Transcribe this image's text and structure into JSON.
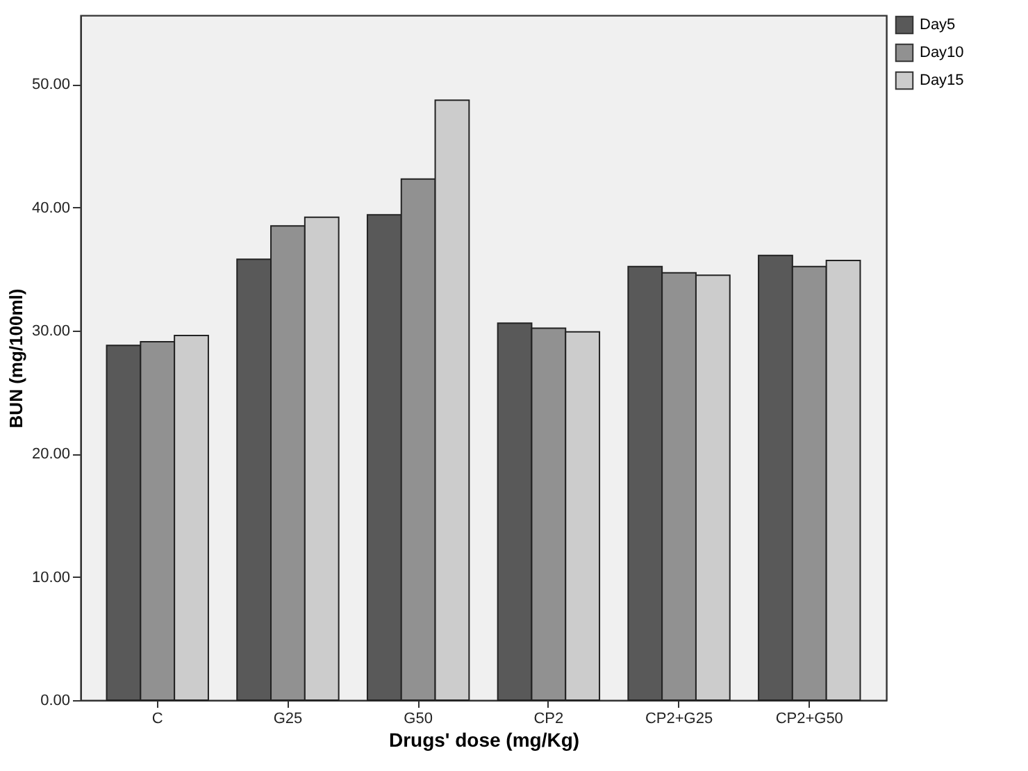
{
  "chart_data": {
    "type": "bar",
    "xlabel": "Drugs' dose (mg/Kg)",
    "ylabel": "BUN (mg/100ml)",
    "categories": [
      "C",
      "G25",
      "G50",
      "CP2",
      "CP2+G25",
      "CP2+G50"
    ],
    "series": [
      {
        "name": "Day5",
        "color": "#595959",
        "values": [
          28.8,
          35.8,
          39.4,
          30.6,
          35.2,
          36.1
        ]
      },
      {
        "name": "Day10",
        "color": "#919191",
        "values": [
          29.1,
          38.5,
          42.3,
          30.2,
          34.7,
          35.2
        ]
      },
      {
        "name": "Day15",
        "color": "#cccccc",
        "values": [
          29.6,
          39.2,
          48.7,
          29.9,
          34.5,
          35.7
        ]
      }
    ],
    "ylim": [
      0,
      55.6
    ],
    "yticks": [
      {
        "value": 0,
        "label": "0.00"
      },
      {
        "value": 10,
        "label": "10.00"
      },
      {
        "value": 20,
        "label": "20.00"
      },
      {
        "value": 30,
        "label": "30.00"
      },
      {
        "value": 40,
        "label": "40.00"
      },
      {
        "value": 50,
        "label": "50.00"
      }
    ],
    "grid": false,
    "legend": "top right"
  }
}
